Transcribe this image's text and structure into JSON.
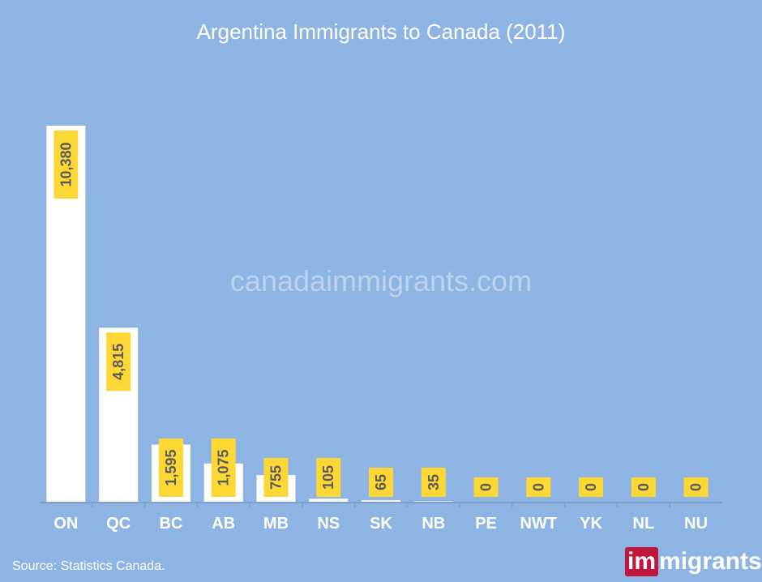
{
  "watermark": "canadaimmigrants.com",
  "source_note": "Source: Statistics Canada.",
  "brand": {
    "part1": "im",
    "part2": "migrants"
  },
  "colors": {
    "background": "#8eb4e3",
    "bar": "#ffffff",
    "label_box": "#fdd835",
    "label_text": "#5a5a5a",
    "axis": "#7f9fc8",
    "brand_red": "#c0173d"
  },
  "chart_data": {
    "type": "bar",
    "title": "Argentina Immigrants to Canada (2011)",
    "xlabel": "",
    "ylabel": "",
    "categories": [
      "ON",
      "QC",
      "BC",
      "AB",
      "MB",
      "NS",
      "SK",
      "NB",
      "PE",
      "NWT",
      "YK",
      "NL",
      "NU"
    ],
    "values": [
      10380,
      4815,
      1595,
      1075,
      755,
      105,
      65,
      35,
      0,
      0,
      0,
      0,
      0
    ],
    "value_labels": [
      "10,380",
      "4,815",
      "1,595",
      "1,075",
      "755",
      "105",
      "65",
      "35",
      "0",
      "0",
      "0",
      "0",
      "0"
    ],
    "ylim": [
      0,
      10380
    ],
    "grid": false,
    "legend": "none"
  }
}
